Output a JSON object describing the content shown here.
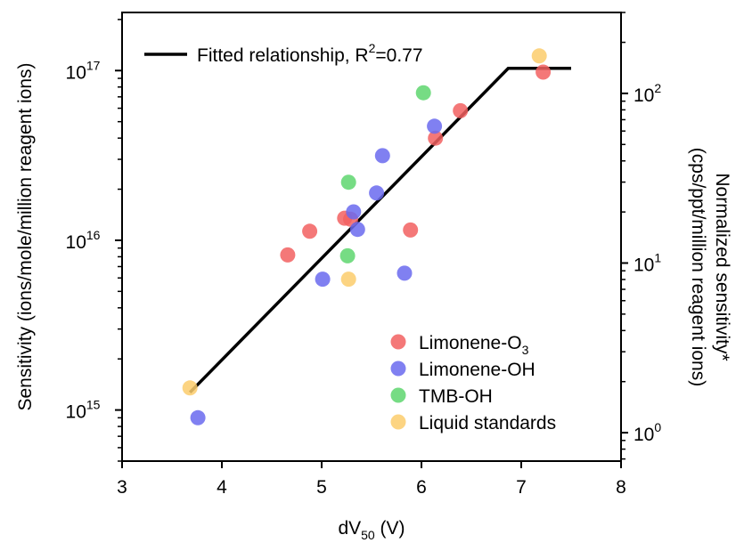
{
  "chart_data": {
    "type": "scatter",
    "title": "",
    "xlabel": "dV",
    "xlabel_sub": "50",
    "xlabel_unit": " (V)",
    "ylabel": "Sensitivity (ions/mole/million reagent ions)",
    "y2label_line1": "Normalized sensitivity*",
    "y2label_line2": "(cps/ppt/million reagent ions)",
    "xlim": [
      3,
      8
    ],
    "ylim": [
      500000000000000.0,
      2.2e+17
    ],
    "yscale": "log",
    "y2scale": "log",
    "y2lim": [
      0.68,
      300
    ],
    "x_ticks": [
      "3",
      "4",
      "5",
      "6",
      "7",
      "8"
    ],
    "y_ticks": [
      {
        "base": "10",
        "exp": "15",
        "value": 1000000000000000.0
      },
      {
        "base": "10",
        "exp": "16",
        "value": 1e+16
      },
      {
        "base": "10",
        "exp": "17",
        "value": 1e+17
      }
    ],
    "y2_ticks": [
      {
        "base": "10",
        "exp": "0",
        "value": 1
      },
      {
        "base": "10",
        "exp": "1",
        "value": 10
      },
      {
        "base": "10",
        "exp": "2",
        "value": 100
      }
    ],
    "grid": false,
    "legend_position": "bottom-right",
    "series": [
      {
        "name": "Limonene-O",
        "name_sub": "3",
        "color": "#f26060",
        "points": [
          [
            4.66,
            8200000000000000.0
          ],
          [
            4.88,
            1.13e+16
          ],
          [
            5.23,
            1.35e+16
          ],
          [
            5.29,
            1.33e+16
          ],
          [
            5.89,
            1.15e+16
          ],
          [
            6.14,
            4e+16
          ],
          [
            6.39,
            5.8e+16
          ],
          [
            7.22,
            9.8e+16
          ]
        ]
      },
      {
        "name": "Limonene-OH",
        "name_sub": "",
        "color": "#6a6aee",
        "points": [
          [
            3.76,
            900000000000000.0
          ],
          [
            5.01,
            5900000000000000.0
          ],
          [
            5.32,
            1.47e+16
          ],
          [
            5.36,
            1.16e+16
          ],
          [
            5.55,
            1.9e+16
          ],
          [
            5.61,
            3.15e+16
          ],
          [
            5.83,
            6400000000000000.0
          ],
          [
            6.13,
            4.7e+16
          ]
        ]
      },
      {
        "name": "TMB-OH",
        "name_sub": "",
        "color": "#5ed66e",
        "points": [
          [
            5.27,
            2.2e+16
          ],
          [
            5.26,
            8100000000000000.0
          ],
          [
            6.02,
            7.4e+16
          ]
        ]
      },
      {
        "name": "Liquid standards",
        "name_sub": "",
        "color": "#fccc6c",
        "points": [
          [
            3.68,
            1350000000000000.0
          ],
          [
            5.27,
            5900000000000000.0
          ],
          [
            7.18,
            1.22e+17
          ]
        ]
      }
    ],
    "fit": {
      "label_prefix": "Fitted relationship, R",
      "label_sup": "2",
      "label_suffix": "=0.77",
      "points": [
        [
          3.68,
          1270000000000000.0
        ],
        [
          6.87,
          1.03e+17
        ],
        [
          7.5,
          1.03e+17
        ]
      ]
    }
  }
}
